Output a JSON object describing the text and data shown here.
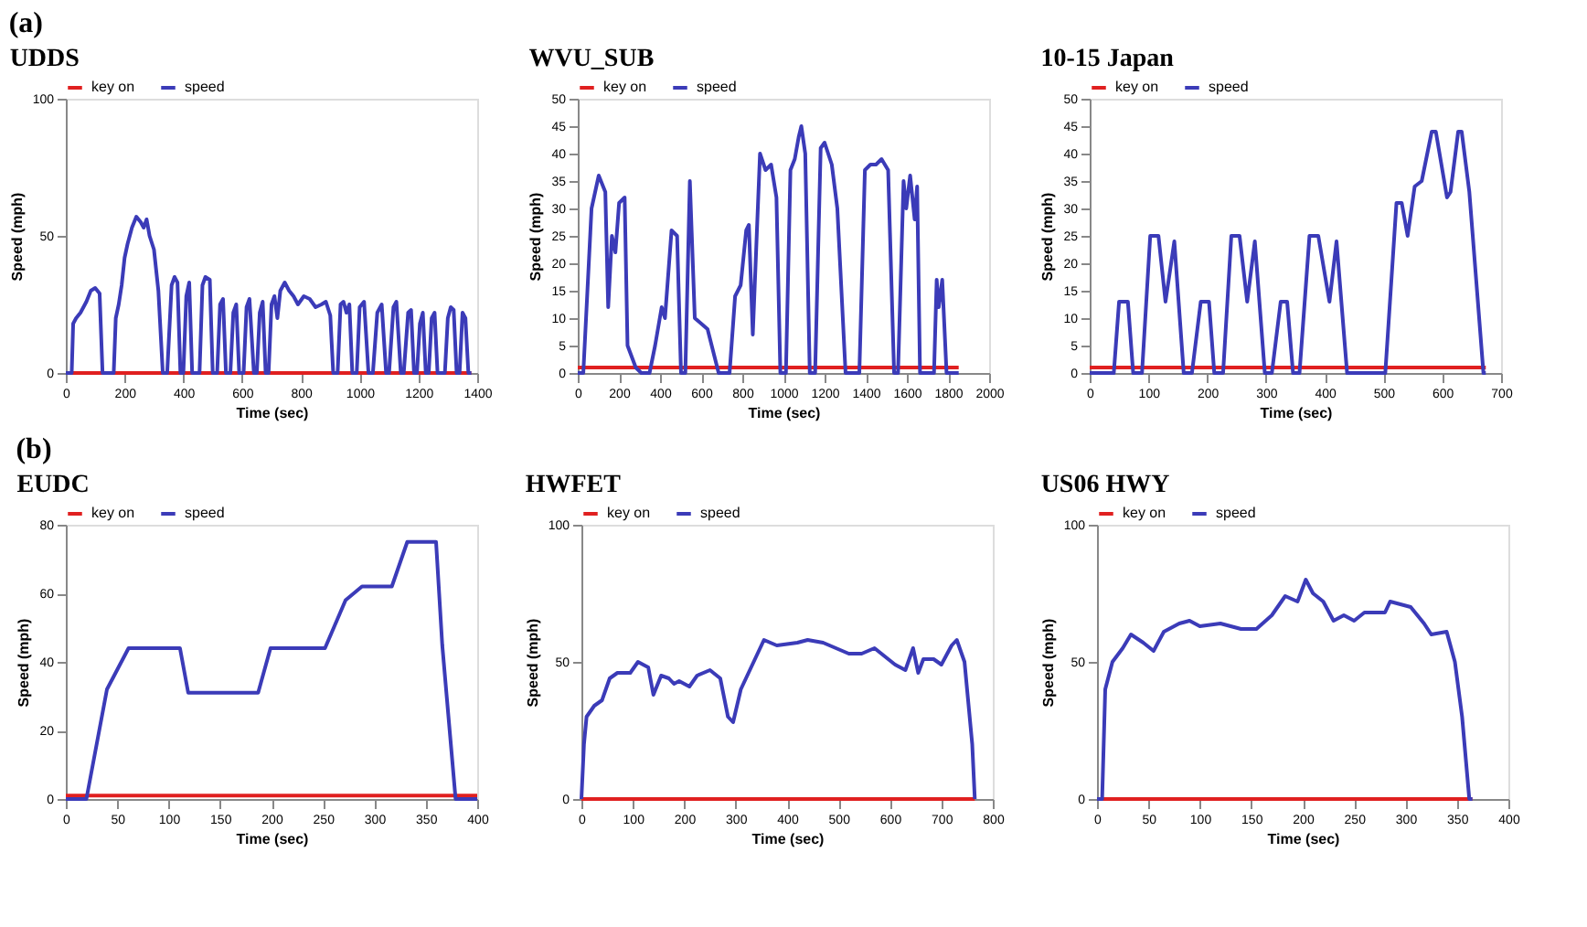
{
  "chart_data": [
    {
      "type": "line",
      "title": "UDDS",
      "annotations": [
        "(a)"
      ],
      "xlabel": "Time (sec)",
      "ylabel": "Speed (mph)",
      "xlim": [
        0,
        1400
      ],
      "xticks": [
        0,
        200,
        400,
        600,
        800,
        1000,
        1200,
        1400
      ],
      "ylim": [
        0,
        100
      ],
      "yticks": [
        0,
        50,
        100
      ],
      "legend": "top",
      "grid": false,
      "series": [
        {
          "name": "key on",
          "color": "#e02020",
          "x": [
            0,
            1380
          ],
          "values": [
            0,
            0
          ]
        },
        {
          "name": "speed",
          "color": "#3b3bb8",
          "x": [
            0,
            20,
            25,
            35,
            50,
            70,
            85,
            100,
            115,
            125,
            163,
            170,
            180,
            190,
            200,
            210,
            225,
            240,
            255,
            265,
            275,
            285,
            300,
            315,
            330,
            345,
            360,
            370,
            380,
            390,
            400,
            410,
            420,
            430,
            455,
            465,
            475,
            490,
            500,
            515,
            525,
            535,
            545,
            560,
            570,
            580,
            590,
            605,
            615,
            625,
            640,
            650,
            660,
            670,
            680,
            690,
            700,
            710,
            720,
            730,
            745,
            760,
            775,
            790,
            810,
            830,
            850,
            870,
            885,
            900,
            910,
            925,
            935,
            945,
            955,
            965,
            975,
            990,
            1000,
            1015,
            1030,
            1045,
            1060,
            1075,
            1090,
            1100,
            1115,
            1125,
            1140,
            1150,
            1165,
            1175,
            1185,
            1195,
            1205,
            1215,
            1225,
            1235,
            1245,
            1255,
            1265,
            1290,
            1300,
            1310,
            1320,
            1330,
            1340,
            1350,
            1360,
            1370,
            1380
          ],
          "values": [
            0,
            0,
            18,
            20,
            22,
            26,
            30,
            31,
            29,
            0,
            0,
            20,
            25,
            32,
            42,
            47,
            53,
            57,
            55,
            53,
            56,
            50,
            45,
            30,
            0,
            0,
            32,
            35,
            33,
            0,
            0,
            28,
            33,
            0,
            0,
            32,
            35,
            34,
            0,
            0,
            25,
            27,
            0,
            0,
            22,
            25,
            0,
            0,
            24,
            27,
            0,
            0,
            22,
            26,
            0,
            0,
            25,
            28,
            20,
            30,
            33,
            30,
            28,
            25,
            28,
            27,
            24,
            25,
            26,
            21,
            0,
            0,
            25,
            26,
            22,
            25,
            0,
            0,
            24,
            26,
            0,
            0,
            22,
            25,
            0,
            0,
            24,
            26,
            0,
            0,
            22,
            23,
            0,
            0,
            18,
            22,
            0,
            0,
            20,
            22,
            0,
            0,
            20,
            24,
            23,
            0,
            0,
            22,
            20,
            0,
            0
          ]
        }
      ]
    },
    {
      "type": "line",
      "title": "WVU_SUB",
      "xlabel": "Time (sec)",
      "ylabel": "Speed (mph)",
      "xlim": [
        0,
        2000
      ],
      "xticks": [
        0,
        200,
        400,
        600,
        800,
        1000,
        1200,
        1400,
        1600,
        1800,
        2000
      ],
      "ylim": [
        0,
        50
      ],
      "yticks": [
        0,
        5,
        10,
        15,
        20,
        25,
        30,
        35,
        40,
        45,
        50
      ],
      "legend": "top",
      "grid": false,
      "series": [
        {
          "name": "key on",
          "color": "#e02020",
          "x": [
            0,
            1852
          ],
          "values": [
            1,
            1
          ]
        },
        {
          "name": "speed",
          "color": "#3b3bb8",
          "x": [
            0,
            27,
            67,
            102,
            134,
            148,
            166,
            183,
            201,
            228,
            242,
            282,
            309,
            349,
            376,
            408,
            424,
            456,
            483,
            502,
            523,
            545,
            569,
            631,
            685,
            738,
            765,
            792,
            819,
            832,
            851,
            886,
            913,
            940,
            966,
            985,
            1012,
            1034,
            1055,
            1074,
            1087,
            1106,
            1128,
            1154,
            1181,
            1200,
            1235,
            1262,
            1302,
            1369,
            1396,
            1423,
            1450,
            1477,
            1509,
            1538,
            1557,
            1584,
            1597,
            1616,
            1638,
            1650,
            1664,
            1732,
            1745,
            1755,
            1772,
            1793,
            1852
          ],
          "values": [
            0,
            0,
            30,
            36,
            33,
            12,
            25,
            22,
            31,
            32,
            5,
            1,
            0,
            0,
            5,
            12,
            10,
            26,
            25,
            0,
            0,
            35,
            10,
            8,
            0,
            0,
            14,
            16,
            26,
            27,
            7,
            40,
            37,
            38,
            32,
            0,
            0,
            37,
            39,
            43,
            45,
            40,
            0,
            0,
            41,
            42,
            38,
            30,
            0,
            0,
            37,
            38,
            38,
            39,
            37,
            0,
            0,
            35,
            30,
            36,
            28,
            34,
            0,
            0,
            17,
            12,
            17,
            0,
            0
          ]
        }
      ]
    },
    {
      "type": "line",
      "title": "10-15 Japan",
      "xlabel": "Time (sec)",
      "ylabel": "Speed (mph)",
      "xlim": [
        0,
        700
      ],
      "xticks": [
        0,
        100,
        200,
        300,
        400,
        500,
        600,
        700
      ],
      "ylim": [
        0,
        50
      ],
      "yticks": [
        0,
        5,
        10,
        15,
        20,
        25,
        30,
        35,
        40,
        45,
        50
      ],
      "legend": "top",
      "grid": false,
      "series": [
        {
          "name": "key on",
          "color": "#e02020",
          "x": [
            0,
            674
          ],
          "values": [
            1,
            1
          ]
        },
        {
          "name": "speed",
          "color": "#3b3bb8",
          "x": [
            0,
            41,
            50,
            65,
            74,
            89,
            103,
            117,
            129,
            144,
            160,
            174,
            189,
            203,
            212,
            227,
            241,
            255,
            268,
            281,
            298,
            310,
            325,
            336,
            346,
            357,
            374,
            389,
            408,
            420,
            438,
            503,
            522,
            531,
            541,
            553,
            565,
            582,
            589,
            608,
            614,
            627,
            633,
            646,
            670,
            674
          ],
          "values": [
            0,
            0,
            13,
            13,
            0,
            0,
            25,
            25,
            13,
            24,
            0,
            0,
            13,
            13,
            0,
            0,
            25,
            25,
            13,
            24,
            0,
            0,
            13,
            13,
            0,
            0,
            25,
            25,
            13,
            24,
            0,
            0,
            31,
            31,
            25,
            34,
            35,
            44,
            44,
            32,
            33,
            44,
            44,
            33,
            0,
            0
          ]
        }
      ]
    },
    {
      "type": "line",
      "title": "EUDC",
      "annotations": [
        "(b)"
      ],
      "xlabel": "Time (sec)",
      "ylabel": "Speed (mph)",
      "xlim": [
        0,
        400
      ],
      "xticks": [
        0,
        50,
        100,
        150,
        200,
        250,
        300,
        350,
        400
      ],
      "ylim": [
        0,
        80
      ],
      "yticks": [
        0,
        20,
        40,
        60,
        80
      ],
      "legend": "top",
      "grid": false,
      "series": [
        {
          "name": "key on",
          "color": "#e02020",
          "x": [
            0,
            400
          ],
          "values": [
            1,
            1
          ]
        },
        {
          "name": "speed",
          "color": "#3b3bb8",
          "x": [
            0,
            20,
            40,
            61,
            111,
            119,
            187,
            199,
            252,
            272,
            288,
            317,
            332,
            360,
            366,
            379,
            400
          ],
          "values": [
            0,
            0,
            32,
            44,
            44,
            31,
            31,
            44,
            44,
            58,
            62,
            62,
            75,
            75,
            45,
            0,
            0
          ]
        }
      ]
    },
    {
      "type": "line",
      "title": "HWFET",
      "xlabel": "Time (sec)",
      "ylabel": "Speed (mph)",
      "xlim": [
        0,
        800
      ],
      "xticks": [
        0,
        100,
        200,
        300,
        400,
        500,
        600,
        700,
        800
      ],
      "ylim": [
        0,
        100
      ],
      "yticks": [
        0,
        50,
        100
      ],
      "legend": "top",
      "grid": false,
      "series": [
        {
          "name": "key on",
          "color": "#e02020",
          "x": [
            0,
            765
          ],
          "values": [
            0,
            0
          ]
        },
        {
          "name": "speed",
          "color": "#3b3bb8",
          "x": [
            0,
            5,
            10,
            25,
            40,
            55,
            70,
            95,
            110,
            130,
            140,
            155,
            170,
            180,
            190,
            210,
            225,
            250,
            270,
            285,
            295,
            310,
            330,
            355,
            380,
            420,
            440,
            470,
            520,
            545,
            570,
            590,
            610,
            630,
            645,
            655,
            665,
            685,
            700,
            720,
            730,
            745,
            760,
            765
          ],
          "values": [
            0,
            20,
            30,
            34,
            36,
            44,
            46,
            46,
            50,
            48,
            38,
            45,
            44,
            42,
            43,
            41,
            45,
            47,
            44,
            30,
            28,
            40,
            48,
            58,
            56,
            57,
            58,
            57,
            53,
            53,
            55,
            52,
            49,
            47,
            55,
            46,
            51,
            51,
            49,
            56,
            58,
            50,
            20,
            0
          ]
        }
      ]
    },
    {
      "type": "line",
      "title": "US06 HWY",
      "xlabel": "Time (sec)",
      "ylabel": "Speed (mph)",
      "xlim": [
        0,
        400
      ],
      "xticks": [
        0,
        50,
        100,
        150,
        200,
        250,
        300,
        350,
        400
      ],
      "ylim": [
        0,
        100
      ],
      "yticks": [
        0,
        50,
        100
      ],
      "legend": "top",
      "grid": false,
      "series": [
        {
          "name": "key on",
          "color": "#e02020",
          "x": [
            0,
            365
          ],
          "values": [
            0,
            0
          ]
        },
        {
          "name": "speed",
          "color": "#3b3bb8",
          "x": [
            0,
            5,
            8,
            15,
            25,
            33,
            45,
            55,
            65,
            80,
            90,
            100,
            120,
            140,
            155,
            170,
            183,
            195,
            203,
            210,
            220,
            230,
            240,
            250,
            260,
            280,
            285,
            305,
            318,
            325,
            340,
            348,
            355,
            362,
            365
          ],
          "values": [
            0,
            0,
            40,
            50,
            55,
            60,
            57,
            54,
            61,
            64,
            65,
            63,
            64,
            62,
            62,
            67,
            74,
            72,
            80,
            75,
            72,
            65,
            67,
            65,
            68,
            68,
            72,
            70,
            64,
            60,
            61,
            50,
            30,
            0,
            0
          ]
        }
      ]
    }
  ]
}
